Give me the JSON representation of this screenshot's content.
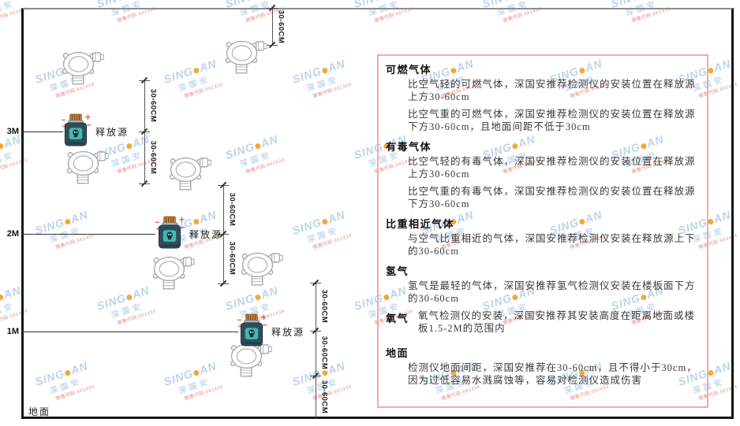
{
  "watermark": {
    "brand_left": "SING",
    "brand_right": "AN",
    "cn": "深国安",
    "code": "销售代码 661434",
    "dot_color": "#f0a93c"
  },
  "diagram": {
    "ground_label": "地面",
    "source_label": "释放源",
    "dim_label": "30-60CM",
    "heights": [
      "3M",
      "2M",
      "1M"
    ]
  },
  "panel": {
    "sections": [
      {
        "heading": "可燃气体",
        "paras": [
          "比空气轻的可燃气体，深国安推荐检测仪的安装位置在释放源上方30-60cm",
          "比空气重的可燃气体，深国安推荐检测仪的安装位置在释放源下方30-60cm，且地面间距不低于30cm"
        ]
      },
      {
        "heading": "有毒气体",
        "paras": [
          "比空气轻的有毒气体，深国安推荐检测仪的安装位置在释放源上方30-60cm",
          "比空气重的有毒气体，深国安推荐检测仪的安装位置在释放源下方30-60cm"
        ]
      },
      {
        "heading": "比重相近气体",
        "paras": [
          "与空气比重相近的气体，深国安推荐检测仪安装在释放源上下的30-60cm"
        ]
      },
      {
        "heading": "氢气",
        "paras": [
          "氢气是最轻的气体，深国安推荐氢气检测仪安装在楼板面下方的30-60cm"
        ]
      },
      {
        "heading": "氧气",
        "paras": [
          "氧气检测仪的安装，深国安推荐其安装高度在距离地面或楼板1.5-2M的范围内"
        ]
      },
      {
        "heading": "地面",
        "paras": [
          "检测仪地面间距，深国安推荐在30-60cm，且不得小于30cm，因为过低容易水溅腐蚀等，容易对检测仪造成伤害"
        ]
      }
    ]
  },
  "colors": {
    "panel_border": "#f4a9a9",
    "frame": "#141414",
    "dimension_line": "#555555"
  }
}
